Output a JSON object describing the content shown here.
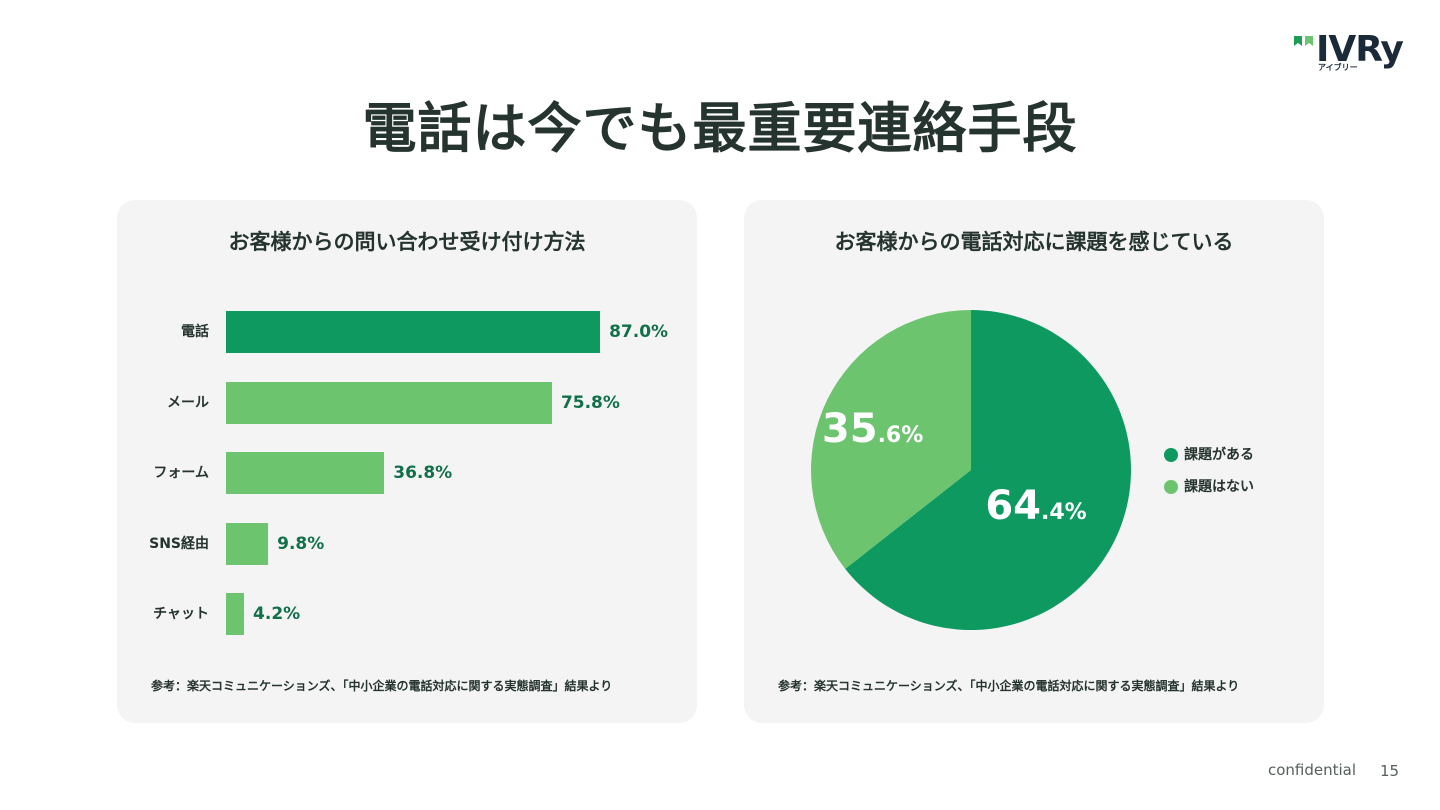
{
  "logo": {
    "text": "IVRy",
    "sub": "アイブリー",
    "colors": [
      "#1f9c58",
      "#6cc46e"
    ]
  },
  "page_title": "電話は今でも最重要連絡手段",
  "left_card": {
    "source": "参考：楽天コミュニケーションズ、「中小企業の電話対応に関する実態調査」結果より"
  },
  "right_card": {
    "source": "参考：楽天コミュニケーションズ、「中小企業の電話対応に関する実態調査」結果より"
  },
  "chart_data": [
    {
      "type": "bar",
      "orientation": "horizontal",
      "title": "お客様からの問い合わせ受け付け方法",
      "categories": [
        "電話",
        "メール",
        "フォーム",
        "SNS経由",
        "チャット"
      ],
      "values": [
        87.0,
        75.8,
        36.8,
        9.8,
        4.2
      ],
      "value_labels": [
        "87.0%",
        "75.8%",
        "36.8%",
        "9.8%",
        "4.2%"
      ],
      "colors": [
        "#0e9960",
        "#6cc46e",
        "#6cc46e",
        "#6cc46e",
        "#6cc46e"
      ],
      "xlim": [
        0,
        100
      ],
      "grid": false,
      "legend": "none"
    },
    {
      "type": "pie",
      "title": "お客様からの電話対応に課題を感じている",
      "categories": [
        "課題がある",
        "課題はない"
      ],
      "values": [
        64.4,
        35.6
      ],
      "label_int": [
        "64",
        "35"
      ],
      "label_dec": [
        ".4%",
        ".6%"
      ],
      "colors": [
        "#0e9960",
        "#6cc46e"
      ],
      "legend": "right"
    }
  ],
  "footer": {
    "confidential": "confidential",
    "page_number": "15"
  }
}
